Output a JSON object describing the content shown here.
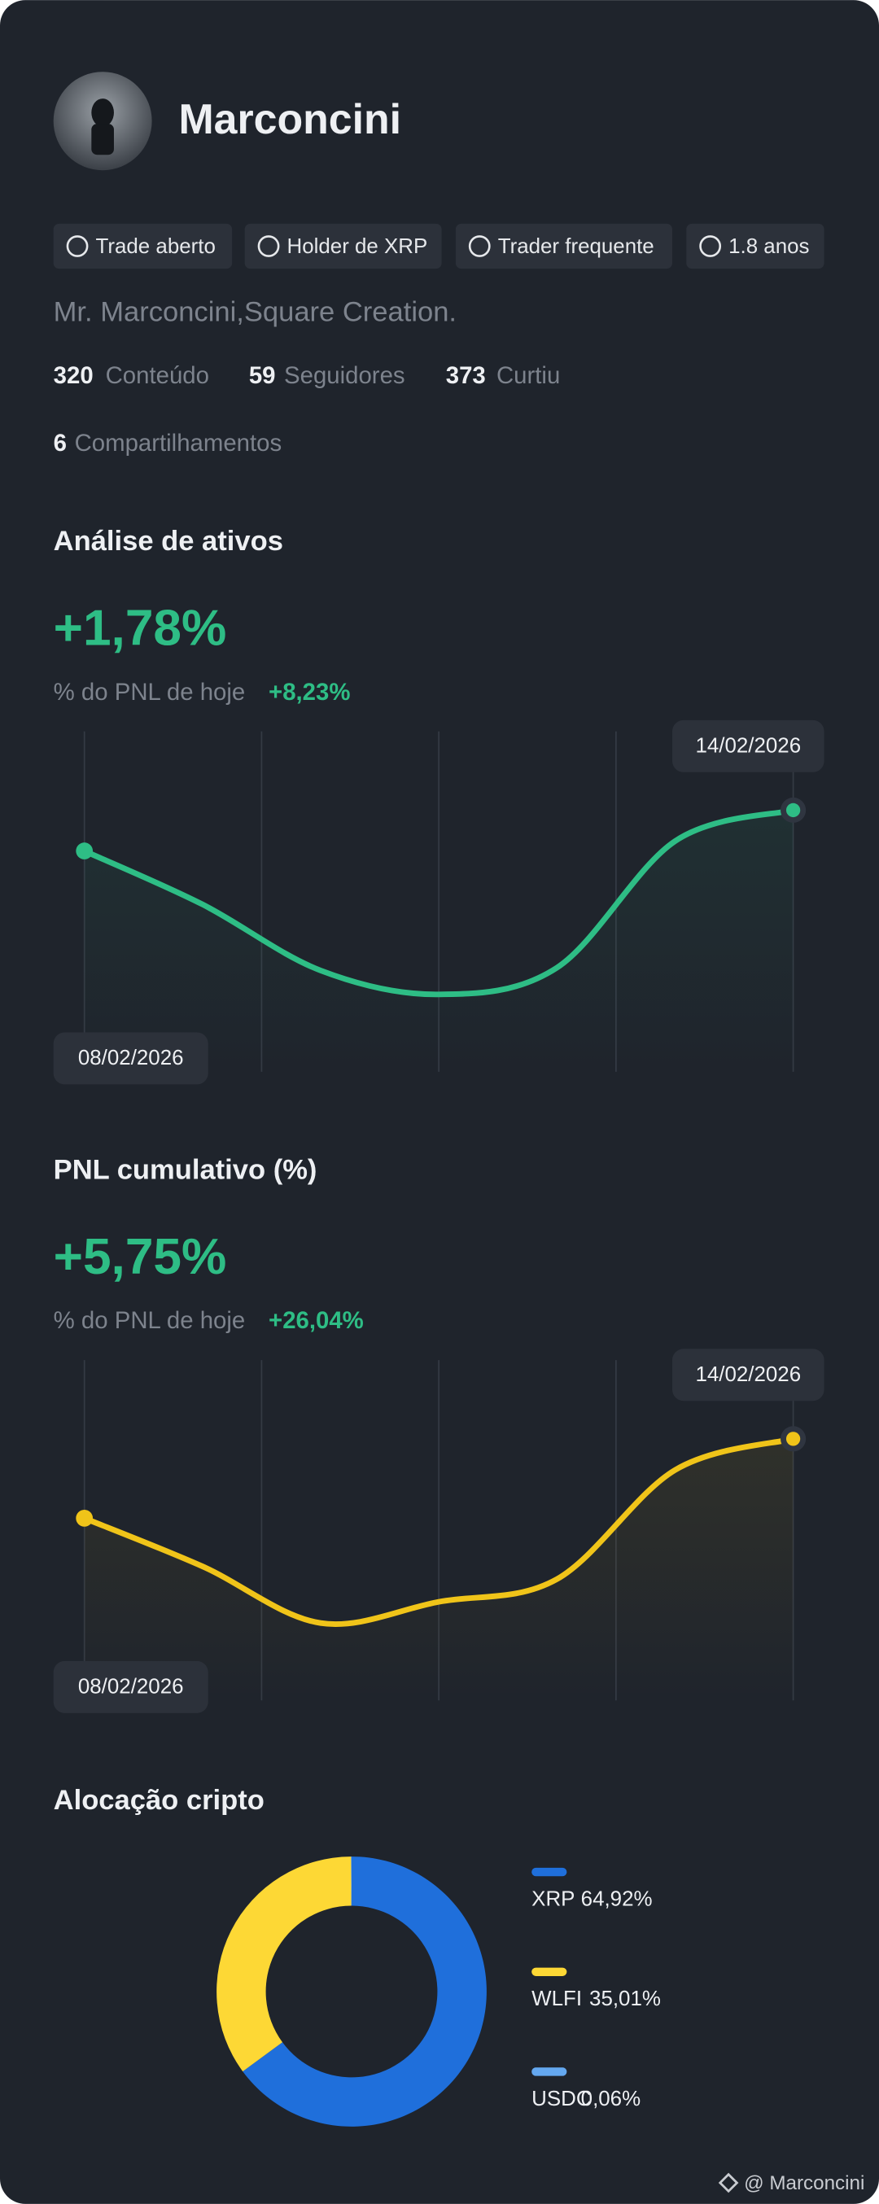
{
  "profile": {
    "name": "Marconcini",
    "badges": [
      "Trade aberto",
      "Holder de XRP",
      "Trader frequente",
      "1.8 anos"
    ],
    "bio": "Mr. Marconcini,Square Creation.",
    "stats": [
      {
        "value": "320",
        "label": "Conteúdo"
      },
      {
        "value": "59",
        "label": "Seguidores"
      },
      {
        "value": "373",
        "label": "Curtiu"
      },
      {
        "value": "6",
        "label": "Compartilhamentos"
      }
    ]
  },
  "chart_data": [
    {
      "type": "line",
      "title": "Análise de ativos",
      "headline": "+1,78%",
      "subheading": "% do PNL de hoje",
      "change": "+8,23%",
      "color": "#2ebd85",
      "x": [
        "08/02/2026",
        null,
        null,
        null,
        null,
        null,
        "14/02/2026"
      ],
      "values": [
        1.15,
        0.77,
        0.3,
        0.13,
        0.32,
        1.22,
        1.44
      ]
    },
    {
      "type": "line",
      "title": "PNL cumulativo (%)",
      "headline": "+5,75%",
      "subheading": "% do PNL de hoje",
      "change": "+26,04%",
      "color": "#f0c419",
      "x": [
        "08/02/2026",
        null,
        null,
        null,
        null,
        null,
        "14/02/2026"
      ],
      "values": [
        8.1,
        4.7,
        0.7,
        2.2,
        3.8,
        11.5,
        13.7
      ]
    },
    {
      "type": "pie",
      "title": "Alocação cripto",
      "categories": [
        "XRP",
        "WLFI",
        "USDC"
      ],
      "values": [
        64.92,
        35.01,
        0.06
      ],
      "value_labels": [
        "64,92%",
        "35,01%",
        "0,06%"
      ],
      "colors": [
        "#1f6fdb",
        "#fdd835",
        "#64a8f0"
      ]
    }
  ],
  "footer": "@ Marconcini"
}
